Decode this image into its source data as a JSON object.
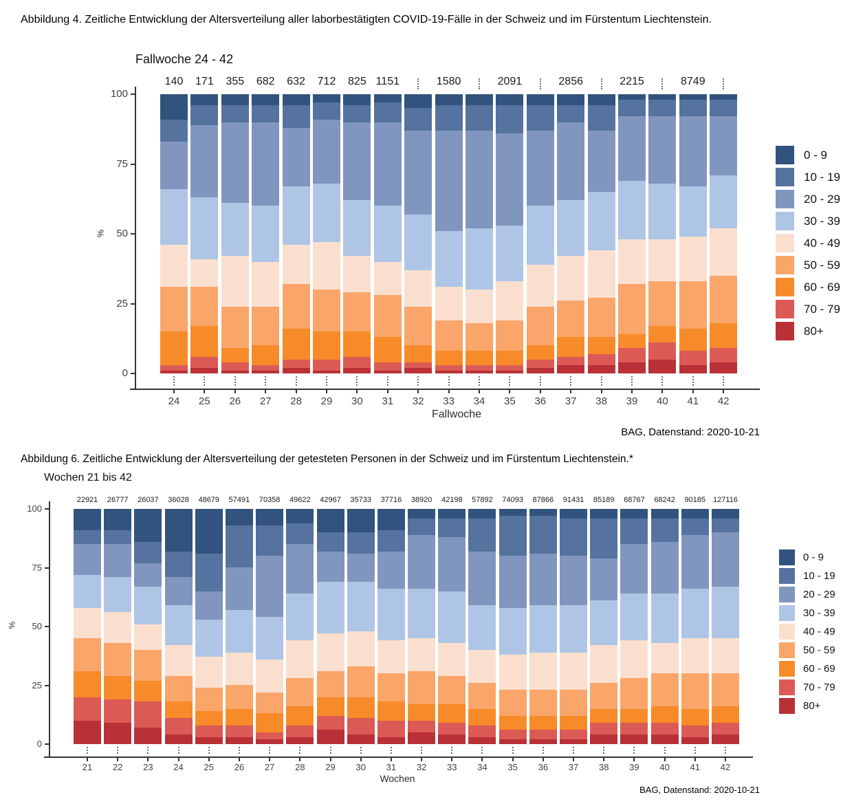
{
  "figure4": {
    "caption": "Abbildung 4. Zeitliche Entwicklung der Altersverteilung aller laborbestätigten COVID-19-Fälle in der Schweiz und im Fürstentum Liechtenstein.",
    "source": "BAG, Datenstand: 2020-10-21"
  },
  "figure6": {
    "caption": "Abbildung 6. Zeitliche Entwicklung der Altersverteilung der getesteten Personen in der Schweiz und im Fürstentum Liechtenstein.*",
    "source": "BAG, Datenstand: 2020-10-21"
  },
  "chart_data": [
    {
      "type": "bar",
      "stacked": true,
      "percent": true,
      "title": "Fallwoche 24 - 42",
      "xlabel": "Fallwoche",
      "ylabel": "%",
      "ylim": [
        0,
        100
      ],
      "yticks": [
        0,
        25,
        50,
        75,
        100
      ],
      "legend_position": "right",
      "grid": false,
      "categories": [
        "24",
        "25",
        "26",
        "27",
        "28",
        "29",
        "30",
        "31",
        "32",
        "33",
        "34",
        "35",
        "36",
        "37",
        "38",
        "39",
        "40",
        "41",
        "42"
      ],
      "count_labels": [
        "140",
        "171",
        "355",
        "682",
        "632",
        "712",
        "825",
        "1151",
        "⋮",
        "1580",
        "⋮",
        "2091",
        "⋮",
        "2856",
        "⋮",
        "2215",
        "⋮",
        "8749",
        "⋮"
      ],
      "age_groups": [
        "0 - 9",
        "10 - 19",
        "20 - 29",
        "30 - 39",
        "40 - 49",
        "50 - 59",
        "60 - 69",
        "70 - 79",
        "80+"
      ],
      "colors": [
        "#31537D",
        "#56729F",
        "#8096BE",
        "#AFC5E5",
        "#FBDFCE",
        "#FAA56A",
        "#F78B29",
        "#DC5A55",
        "#B93036"
      ],
      "series": [
        {
          "name": "0 - 9",
          "values": [
            9,
            4,
            4,
            4,
            4,
            3,
            4,
            3,
            5,
            4,
            4,
            4,
            4,
            4,
            4,
            2,
            2,
            2,
            2
          ]
        },
        {
          "name": "10 - 19",
          "values": [
            8,
            7,
            6,
            6,
            8,
            6,
            6,
            7,
            8,
            9,
            9,
            10,
            9,
            6,
            9,
            6,
            6,
            6,
            6
          ]
        },
        {
          "name": "20 - 29",
          "values": [
            17,
            26,
            29,
            30,
            21,
            23,
            28,
            30,
            30,
            36,
            35,
            33,
            27,
            28,
            22,
            23,
            24,
            25,
            21
          ]
        },
        {
          "name": "30 - 39",
          "values": [
            20,
            22,
            19,
            20,
            21,
            21,
            20,
            20,
            20,
            20,
            22,
            20,
            21,
            20,
            21,
            21,
            20,
            18,
            19
          ]
        },
        {
          "name": "40 - 49",
          "values": [
            15,
            10,
            18,
            16,
            14,
            17,
            13,
            12,
            13,
            12,
            12,
            14,
            15,
            16,
            17,
            16,
            15,
            16,
            17
          ]
        },
        {
          "name": "50 - 59",
          "values": [
            16,
            14,
            15,
            14,
            16,
            15,
            14,
            15,
            14,
            11,
            10,
            11,
            14,
            13,
            14,
            18,
            16,
            17,
            17
          ]
        },
        {
          "name": "60 - 69",
          "values": [
            12,
            11,
            5,
            7,
            11,
            10,
            9,
            9,
            6,
            5,
            5,
            5,
            5,
            7,
            6,
            5,
            6,
            8,
            9
          ]
        },
        {
          "name": "70 - 79",
          "values": [
            2,
            4,
            3,
            2,
            3,
            4,
            4,
            3,
            2,
            2,
            2,
            2,
            3,
            3,
            4,
            5,
            6,
            5,
            5
          ]
        },
        {
          "name": "80+",
          "values": [
            1,
            2,
            1,
            1,
            2,
            1,
            2,
            1,
            2,
            1,
            1,
            1,
            2,
            3,
            3,
            4,
            5,
            3,
            4
          ]
        }
      ]
    },
    {
      "type": "bar",
      "stacked": true,
      "percent": true,
      "title": "Wochen 21 bis 42",
      "xlabel": "Wochen",
      "ylabel": "%",
      "ylim": [
        0,
        100
      ],
      "yticks": [
        0,
        25,
        50,
        75,
        100
      ],
      "legend_position": "right",
      "grid": false,
      "categories": [
        "21",
        "22",
        "23",
        "24",
        "25",
        "26",
        "27",
        "28",
        "29",
        "30",
        "31",
        "32",
        "33",
        "34",
        "35",
        "36",
        "37",
        "38",
        "39",
        "40",
        "41",
        "42"
      ],
      "count_labels": [
        "22921",
        "26777",
        "26037",
        "36028",
        "48679",
        "57491",
        "70358",
        "49622",
        "42967",
        "35733",
        "37716",
        "38920",
        "42198",
        "57892",
        "74093",
        "87866",
        "91431",
        "85189",
        "68767",
        "68242",
        "90185",
        "127116"
      ],
      "age_groups": [
        "0 - 9",
        "10 - 19",
        "20 - 29",
        "30 - 39",
        "40 - 49",
        "50 - 59",
        "60 - 69",
        "70 - 79",
        "80+"
      ],
      "colors": [
        "#31537D",
        "#56729F",
        "#8096BE",
        "#AFC5E5",
        "#FBDFCE",
        "#FAA56A",
        "#F78B29",
        "#DC5A55",
        "#B93036"
      ],
      "series": [
        {
          "name": "0 - 9",
          "values": [
            9,
            9,
            14,
            18,
            19,
            7,
            7,
            6,
            10,
            10,
            9,
            4,
            4,
            4,
            3,
            3,
            4,
            4,
            4,
            4,
            4,
            4
          ]
        },
        {
          "name": "10 - 19",
          "values": [
            6,
            6,
            9,
            11,
            16,
            18,
            13,
            9,
            8,
            9,
            9,
            7,
            8,
            14,
            17,
            16,
            16,
            17,
            11,
            10,
            7,
            6
          ]
        },
        {
          "name": "20 - 29",
          "values": [
            13,
            14,
            10,
            12,
            12,
            18,
            26,
            21,
            13,
            12,
            16,
            23,
            23,
            23,
            22,
            22,
            21,
            18,
            21,
            22,
            23,
            23
          ]
        },
        {
          "name": "30 - 39",
          "values": [
            14,
            15,
            16,
            17,
            16,
            18,
            18,
            20,
            22,
            21,
            22,
            21,
            22,
            19,
            20,
            20,
            20,
            19,
            20,
            21,
            21,
            22
          ]
        },
        {
          "name": "40 - 49",
          "values": [
            13,
            13,
            11,
            13,
            13,
            14,
            14,
            16,
            16,
            15,
            14,
            14,
            14,
            14,
            15,
            16,
            16,
            16,
            16,
            13,
            15,
            15
          ]
        },
        {
          "name": "50 - 59",
          "values": [
            14,
            14,
            13,
            11,
            10,
            10,
            9,
            12,
            11,
            13,
            12,
            14,
            12,
            11,
            11,
            11,
            11,
            11,
            13,
            14,
            15,
            14
          ]
        },
        {
          "name": "60 - 69",
          "values": [
            11,
            10,
            9,
            7,
            6,
            7,
            8,
            8,
            8,
            9,
            8,
            7,
            8,
            7,
            6,
            6,
            6,
            6,
            6,
            7,
            7,
            7
          ]
        },
        {
          "name": "70 - 79",
          "values": [
            10,
            10,
            11,
            7,
            5,
            5,
            3,
            5,
            6,
            7,
            7,
            5,
            5,
            5,
            4,
            4,
            4,
            5,
            5,
            5,
            5,
            5
          ]
        },
        {
          "name": "80+",
          "values": [
            10,
            9,
            7,
            4,
            3,
            3,
            2,
            3,
            6,
            4,
            3,
            5,
            4,
            3,
            2,
            2,
            2,
            4,
            4,
            4,
            3,
            4
          ]
        }
      ]
    }
  ]
}
